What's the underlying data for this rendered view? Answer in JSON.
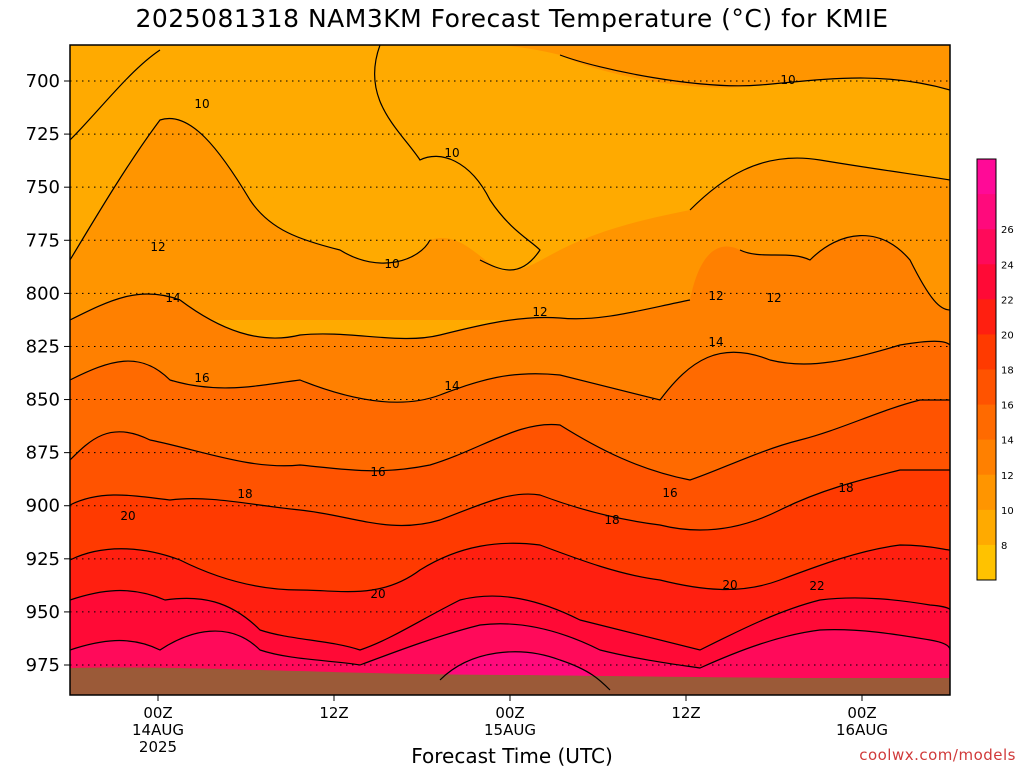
{
  "chart_data": {
    "type": "heatmap",
    "title": "2025081318 NAM3KM Forecast Temperature (°C) for KMIE",
    "xlabel": "Forecast Time (UTC)",
    "ylabel": "",
    "yscale": "pressure (inverted)",
    "yticks": [
      "700",
      "725",
      "750",
      "775",
      "800",
      "825",
      "850",
      "875",
      "900",
      "925",
      "950",
      "975"
    ],
    "xticks": [
      {
        "lines": [
          "00Z",
          "14AUG",
          "2025"
        ]
      },
      {
        "lines": [
          "12Z"
        ]
      },
      {
        "lines": [
          "00Z",
          "15AUG"
        ]
      },
      {
        "lines": [
          "12Z"
        ]
      },
      {
        "lines": [
          "00Z",
          "16AUG"
        ]
      }
    ],
    "grid": "dotted horizontal",
    "colorbar": {
      "placement": "right",
      "ticks": [
        "8",
        "10",
        "12",
        "14",
        "16",
        "18",
        "20",
        "22",
        "24",
        "26"
      ],
      "colors": [
        "#ffc200",
        "#ffaa00",
        "#ff9500",
        "#ff8000",
        "#ff6a00",
        "#ff5300",
        "#ff3a00",
        "#ff1f10",
        "#ff0a36",
        "#ff0a5a",
        "#ff0a7c",
        "#ff0a97"
      ]
    },
    "contour_labels": [
      "10",
      "10",
      "10",
      "10",
      "12",
      "12",
      "12",
      "12",
      "14",
      "14",
      "14",
      "16",
      "16",
      "16",
      "18",
      "18",
      "18",
      "20",
      "20",
      "20",
      "22"
    ],
    "temperature_by_level": [
      {
        "pressure": 700,
        "temp_range": [
          8,
          11
        ]
      },
      {
        "pressure": 750,
        "temp_range": [
          9,
          12
        ]
      },
      {
        "pressure": 800,
        "temp_range": [
          12,
          14
        ]
      },
      {
        "pressure": 850,
        "temp_range": [
          14,
          17
        ]
      },
      {
        "pressure": 900,
        "temp_range": [
          17,
          20
        ]
      },
      {
        "pressure": 950,
        "temp_range": [
          20,
          24
        ]
      },
      {
        "pressure": 975,
        "temp_range": [
          22,
          27
        ]
      }
    ],
    "colors": {
      "ground": "#9b5a38",
      "contour": "#000000"
    }
  },
  "watermark": "coolwx.com/models"
}
